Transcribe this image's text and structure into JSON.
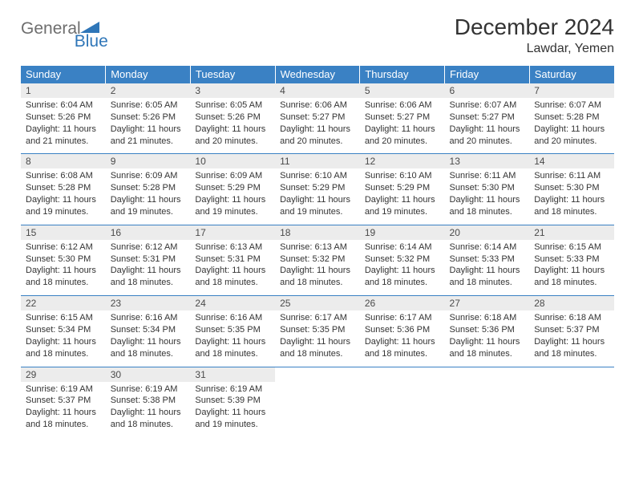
{
  "logo": {
    "general": "General",
    "blue": "Blue"
  },
  "title": "December 2024",
  "location": "Lawdar, Yemen",
  "colors": {
    "header_bg": "#3a81c4",
    "header_text": "#ffffff",
    "daynum_bg": "#ececec",
    "border": "#3a81c4",
    "logo_grey": "#6e6e6e",
    "logo_blue": "#2f76b8"
  },
  "weekdays": [
    "Sunday",
    "Monday",
    "Tuesday",
    "Wednesday",
    "Thursday",
    "Friday",
    "Saturday"
  ],
  "weeks": [
    [
      {
        "n": "1",
        "sr": "6:04 AM",
        "ss": "5:26 PM",
        "dl": "11 hours and 21 minutes."
      },
      {
        "n": "2",
        "sr": "6:05 AM",
        "ss": "5:26 PM",
        "dl": "11 hours and 21 minutes."
      },
      {
        "n": "3",
        "sr": "6:05 AM",
        "ss": "5:26 PM",
        "dl": "11 hours and 20 minutes."
      },
      {
        "n": "4",
        "sr": "6:06 AM",
        "ss": "5:27 PM",
        "dl": "11 hours and 20 minutes."
      },
      {
        "n": "5",
        "sr": "6:06 AM",
        "ss": "5:27 PM",
        "dl": "11 hours and 20 minutes."
      },
      {
        "n": "6",
        "sr": "6:07 AM",
        "ss": "5:27 PM",
        "dl": "11 hours and 20 minutes."
      },
      {
        "n": "7",
        "sr": "6:07 AM",
        "ss": "5:28 PM",
        "dl": "11 hours and 20 minutes."
      }
    ],
    [
      {
        "n": "8",
        "sr": "6:08 AM",
        "ss": "5:28 PM",
        "dl": "11 hours and 19 minutes."
      },
      {
        "n": "9",
        "sr": "6:09 AM",
        "ss": "5:28 PM",
        "dl": "11 hours and 19 minutes."
      },
      {
        "n": "10",
        "sr": "6:09 AM",
        "ss": "5:29 PM",
        "dl": "11 hours and 19 minutes."
      },
      {
        "n": "11",
        "sr": "6:10 AM",
        "ss": "5:29 PM",
        "dl": "11 hours and 19 minutes."
      },
      {
        "n": "12",
        "sr": "6:10 AM",
        "ss": "5:29 PM",
        "dl": "11 hours and 19 minutes."
      },
      {
        "n": "13",
        "sr": "6:11 AM",
        "ss": "5:30 PM",
        "dl": "11 hours and 18 minutes."
      },
      {
        "n": "14",
        "sr": "6:11 AM",
        "ss": "5:30 PM",
        "dl": "11 hours and 18 minutes."
      }
    ],
    [
      {
        "n": "15",
        "sr": "6:12 AM",
        "ss": "5:30 PM",
        "dl": "11 hours and 18 minutes."
      },
      {
        "n": "16",
        "sr": "6:12 AM",
        "ss": "5:31 PM",
        "dl": "11 hours and 18 minutes."
      },
      {
        "n": "17",
        "sr": "6:13 AM",
        "ss": "5:31 PM",
        "dl": "11 hours and 18 minutes."
      },
      {
        "n": "18",
        "sr": "6:13 AM",
        "ss": "5:32 PM",
        "dl": "11 hours and 18 minutes."
      },
      {
        "n": "19",
        "sr": "6:14 AM",
        "ss": "5:32 PM",
        "dl": "11 hours and 18 minutes."
      },
      {
        "n": "20",
        "sr": "6:14 AM",
        "ss": "5:33 PM",
        "dl": "11 hours and 18 minutes."
      },
      {
        "n": "21",
        "sr": "6:15 AM",
        "ss": "5:33 PM",
        "dl": "11 hours and 18 minutes."
      }
    ],
    [
      {
        "n": "22",
        "sr": "6:15 AM",
        "ss": "5:34 PM",
        "dl": "11 hours and 18 minutes."
      },
      {
        "n": "23",
        "sr": "6:16 AM",
        "ss": "5:34 PM",
        "dl": "11 hours and 18 minutes."
      },
      {
        "n": "24",
        "sr": "6:16 AM",
        "ss": "5:35 PM",
        "dl": "11 hours and 18 minutes."
      },
      {
        "n": "25",
        "sr": "6:17 AM",
        "ss": "5:35 PM",
        "dl": "11 hours and 18 minutes."
      },
      {
        "n": "26",
        "sr": "6:17 AM",
        "ss": "5:36 PM",
        "dl": "11 hours and 18 minutes."
      },
      {
        "n": "27",
        "sr": "6:18 AM",
        "ss": "5:36 PM",
        "dl": "11 hours and 18 minutes."
      },
      {
        "n": "28",
        "sr": "6:18 AM",
        "ss": "5:37 PM",
        "dl": "11 hours and 18 minutes."
      }
    ],
    [
      {
        "n": "29",
        "sr": "6:19 AM",
        "ss": "5:37 PM",
        "dl": "11 hours and 18 minutes."
      },
      {
        "n": "30",
        "sr": "6:19 AM",
        "ss": "5:38 PM",
        "dl": "11 hours and 18 minutes."
      },
      {
        "n": "31",
        "sr": "6:19 AM",
        "ss": "5:39 PM",
        "dl": "11 hours and 19 minutes."
      },
      null,
      null,
      null,
      null
    ]
  ],
  "labels": {
    "sunrise": "Sunrise:",
    "sunset": "Sunset:",
    "daylight": "Daylight:"
  }
}
